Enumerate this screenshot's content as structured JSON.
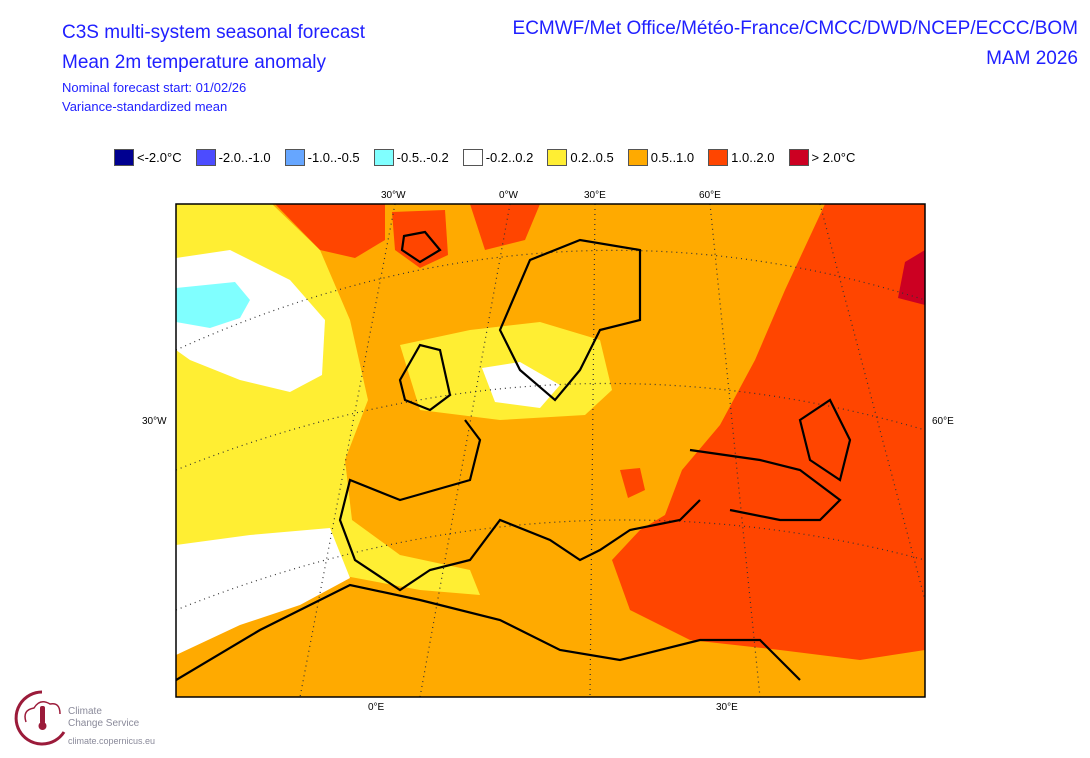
{
  "header": {
    "title": "C3S multi-system seasonal forecast",
    "subtitle": "Mean 2m temperature anomaly",
    "forecast_start": "Nominal forecast start: 01/02/26",
    "method": "Variance-standardized mean",
    "centres": "ECMWF/Met Office/Météo-France/CMCC/DWD/NCEP/ECCC/BOM",
    "period": "MAM 2026"
  },
  "legend": [
    {
      "label": "<-2.0°C",
      "color": "#000090"
    },
    {
      "label": "-2.0..-1.0",
      "color": "#4c4cff"
    },
    {
      "label": "-1.0..-0.5",
      "color": "#66a6ff"
    },
    {
      "label": "-0.5..-0.2",
      "color": "#80ffff"
    },
    {
      "label": "-0.2..0.2",
      "color": "#ffffff"
    },
    {
      "label": "0.2..0.5",
      "color": "#ffee33"
    },
    {
      "label": "0.5..1.0",
      "color": "#ffaa00"
    },
    {
      "label": "1.0..2.0",
      "color": "#ff4500"
    },
    {
      "label": "> 2.0°C",
      "color": "#cc0022"
    }
  ],
  "axes": {
    "top": [
      "30°W",
      "0°W",
      "30°E",
      "60°E"
    ],
    "left": "30°W",
    "right": "60°E",
    "bottom": [
      "0°E",
      "30°E"
    ]
  },
  "logo": {
    "line1": "Climate",
    "line2": "Change Service",
    "url": "climate.copernicus.eu"
  }
}
